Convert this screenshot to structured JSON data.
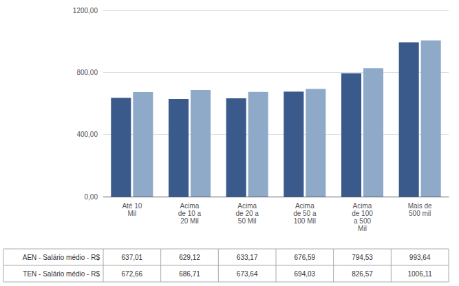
{
  "chart_data": {
    "type": "bar",
    "categories": [
      "Até 10\nMil",
      "Acima\nde 10 a\n20 Mil",
      "Acima\nde 20 a\n50 Mil",
      "Acima\nde 50 a\n100 Mil",
      "Acima\nde 100\na 500\nMil",
      "Mais de\n500 mil"
    ],
    "series": [
      {
        "name": "AEN - Salário médio - R$",
        "color": "#3a5a8c",
        "values": [
          637.01,
          629.12,
          633.17,
          676.59,
          794.53,
          993.64
        ],
        "value_labels": [
          "637,01",
          "629,12",
          "633,17",
          "676,59",
          "794,53",
          "993,64"
        ]
      },
      {
        "name": "TEN - Salário médio - R$",
        "color": "#8eaac8",
        "values": [
          672.66,
          686.71,
          673.64,
          694.03,
          826.57,
          1006.11
        ],
        "value_labels": [
          "672,66",
          "686,71",
          "673,64",
          "694,03",
          "826,57",
          "1006,11"
        ]
      }
    ],
    "ylim": [
      0,
      1200
    ],
    "yticks": [
      {
        "value": 0,
        "label": "0,00"
      },
      {
        "value": 400,
        "label": "400,00"
      },
      {
        "value": 800,
        "label": "800,00"
      },
      {
        "value": 1200,
        "label": "1200,00"
      }
    ],
    "grid": true
  }
}
